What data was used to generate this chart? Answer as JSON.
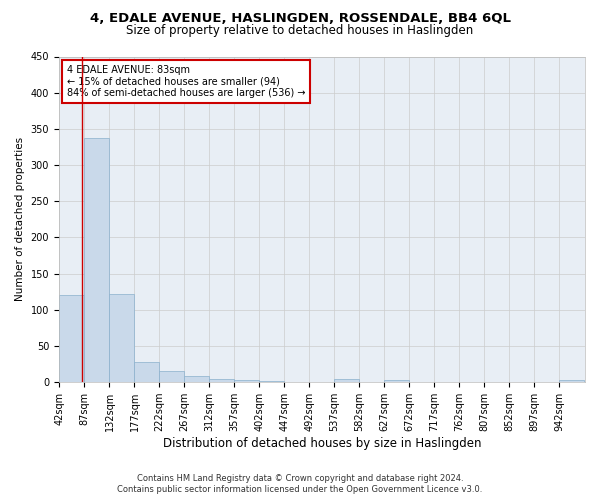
{
  "title1": "4, EDALE AVENUE, HASLINGDEN, ROSSENDALE, BB4 6QL",
  "title2": "Size of property relative to detached houses in Haslingden",
  "xlabel": "Distribution of detached houses by size in Haslingden",
  "ylabel": "Number of detached properties",
  "footer1": "Contains HM Land Registry data © Crown copyright and database right 2024.",
  "footer2": "Contains public sector information licensed under the Open Government Licence v3.0.",
  "annotation_title": "4 EDALE AVENUE: 83sqm",
  "annotation_line1": "← 15% of detached houses are smaller (94)",
  "annotation_line2": "84% of semi-detached houses are larger (536) →",
  "bar_color": "#c9d9ea",
  "bar_edge_color": "#8ab0cc",
  "background_color": "#e8eef5",
  "vline_color": "#cc0000",
  "annotation_box_color": "#ffffff",
  "annotation_box_edge": "#cc0000",
  "bin_labels": [
    "42sqm",
    "87sqm",
    "132sqm",
    "177sqm",
    "222sqm",
    "267sqm",
    "312sqm",
    "357sqm",
    "402sqm",
    "447sqm",
    "492sqm",
    "537sqm",
    "582sqm",
    "627sqm",
    "672sqm",
    "717sqm",
    "762sqm",
    "807sqm",
    "852sqm",
    "897sqm",
    "942sqm"
  ],
  "bar_heights": [
    120,
    338,
    122,
    28,
    15,
    8,
    5,
    3,
    1,
    0,
    0,
    4,
    0,
    3,
    0,
    0,
    0,
    0,
    0,
    0,
    3
  ],
  "vline_x": 83,
  "bin_edges": [
    42,
    87,
    132,
    177,
    222,
    267,
    312,
    357,
    402,
    447,
    492,
    537,
    582,
    627,
    672,
    717,
    762,
    807,
    852,
    897,
    942
  ],
  "ylim": [
    0,
    450
  ],
  "yticks": [
    0,
    50,
    100,
    150,
    200,
    250,
    300,
    350,
    400,
    450
  ],
  "grid_color": "#cccccc",
  "title1_fontsize": 9.5,
  "title2_fontsize": 8.5,
  "xlabel_fontsize": 8.5,
  "ylabel_fontsize": 7.5,
  "tick_fontsize": 7,
  "footer_fontsize": 6
}
